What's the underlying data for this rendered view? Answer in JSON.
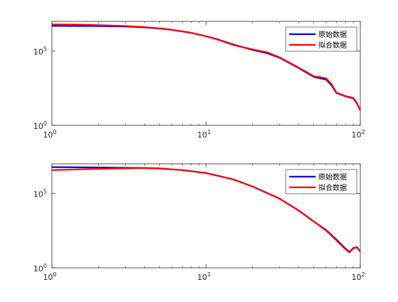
{
  "chart_data": [
    {
      "type": "line",
      "xscale": "log",
      "yscale": "log",
      "xlim": [
        1,
        100
      ],
      "ylim": [
        1,
        10000000
      ],
      "xticks": [
        {
          "base": "10",
          "exp": "0"
        },
        {
          "base": "10",
          "exp": "1"
        },
        {
          "base": "10",
          "exp": "2"
        }
      ],
      "yticks": [
        {
          "base": "10",
          "exp": "0"
        },
        {
          "base": "10",
          "exp": "5"
        }
      ],
      "legend_position": "top-right",
      "grid": false,
      "series": [
        {
          "name": "原始数据",
          "color": "#0000ff",
          "points": [
            [
              1,
              5000000
            ],
            [
              1.5,
              4900000
            ],
            [
              2,
              4800000
            ],
            [
              3,
              4500000
            ],
            [
              4,
              3900000
            ],
            [
              5,
              3300000
            ],
            [
              6,
              2700000
            ],
            [
              8,
              1700000
            ],
            [
              10,
              1000000
            ],
            [
              12,
              600000
            ],
            [
              15,
              280000
            ],
            [
              20,
              120000
            ],
            [
              25,
              70000
            ],
            [
              30,
              35000
            ],
            [
              40,
              7000
            ],
            [
              50,
              1800
            ],
            [
              60,
              1200
            ],
            [
              65,
              500
            ],
            [
              70,
              150
            ],
            [
              80,
              90
            ],
            [
              90,
              65
            ],
            [
              95,
              30
            ],
            [
              100,
              10
            ]
          ]
        },
        {
          "name": "拟合数据",
          "color": "#ff0000",
          "points": [
            [
              1,
              6200000
            ],
            [
              1.5,
              6000000
            ],
            [
              2,
              5600000
            ],
            [
              3,
              4900000
            ],
            [
              4,
              4100000
            ],
            [
              5,
              3400000
            ],
            [
              6,
              2750000
            ],
            [
              8,
              1700000
            ],
            [
              10,
              1000000
            ],
            [
              12,
              580000
            ],
            [
              15,
              260000
            ],
            [
              20,
              130000
            ],
            [
              25,
              80000
            ],
            [
              30,
              38000
            ],
            [
              40,
              7500
            ],
            [
              50,
              2000
            ],
            [
              60,
              1500
            ],
            [
              65,
              600
            ],
            [
              70,
              160
            ],
            [
              80,
              95
            ],
            [
              90,
              70
            ],
            [
              95,
              32
            ],
            [
              100,
              10
            ]
          ]
        }
      ]
    },
    {
      "type": "line",
      "xscale": "log",
      "yscale": "log",
      "xlim": [
        1,
        100
      ],
      "ylim": [
        1,
        10000000
      ],
      "xticks": [
        {
          "base": "10",
          "exp": "0"
        },
        {
          "base": "10",
          "exp": "1"
        },
        {
          "base": "10",
          "exp": "2"
        }
      ],
      "yticks": [
        {
          "base": "10",
          "exp": "0"
        },
        {
          "base": "10",
          "exp": "5"
        }
      ],
      "legend_position": "top-right",
      "grid": false,
      "series": [
        {
          "name": "原始数据",
          "color": "#0000ff",
          "points": [
            [
              1,
              6000000
            ],
            [
              2,
              5700000
            ],
            [
              3,
              5400000
            ],
            [
              4,
              5200000
            ],
            [
              5,
              4900000
            ],
            [
              7,
              3800000
            ],
            [
              10,
              2400000
            ],
            [
              15,
              900000
            ],
            [
              20,
              300000
            ],
            [
              30,
              45000
            ],
            [
              40,
              7000
            ],
            [
              50,
              1300
            ],
            [
              60,
              350
            ],
            [
              70,
              80
            ],
            [
              80,
              20
            ],
            [
              85,
              12
            ],
            [
              90,
              20
            ],
            [
              95,
              25
            ],
            [
              100,
              12
            ]
          ]
        },
        {
          "name": "拟合数据",
          "color": "#ff0000",
          "points": [
            [
              1,
              3800000
            ],
            [
              2,
              4600000
            ],
            [
              3,
              5000000
            ],
            [
              4,
              5200000
            ],
            [
              5,
              4900000
            ],
            [
              7,
              3800000
            ],
            [
              10,
              2400000
            ],
            [
              15,
              900000
            ],
            [
              20,
              300000
            ],
            [
              30,
              45000
            ],
            [
              40,
              7000
            ],
            [
              50,
              1300
            ],
            [
              60,
              320
            ],
            [
              70,
              70
            ],
            [
              80,
              18
            ],
            [
              85,
              11
            ],
            [
              90,
              22
            ],
            [
              95,
              24
            ],
            [
              100,
              12
            ]
          ]
        }
      ]
    }
  ]
}
